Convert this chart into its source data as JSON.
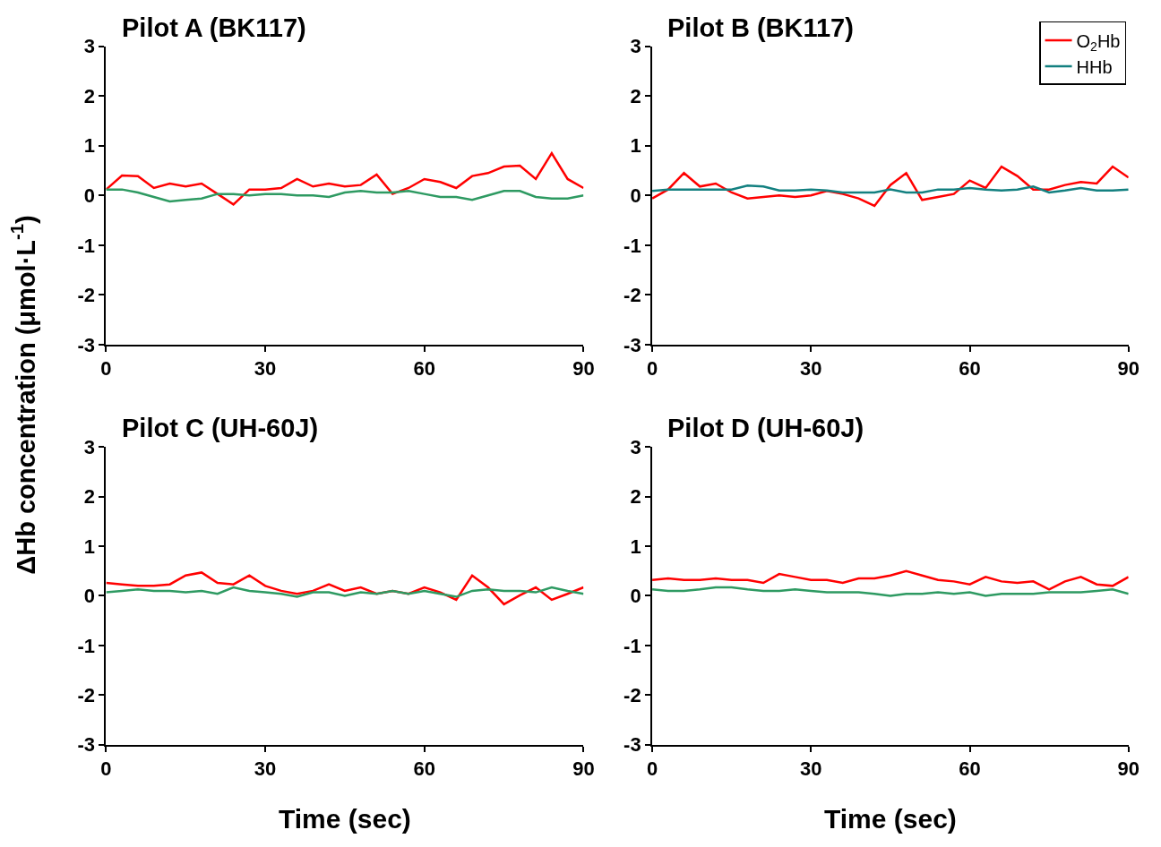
{
  "chart_data": [
    {
      "type": "line",
      "title": "Pilot A (BK117)",
      "ylabel": "ΔHb concentration (μmol·L$^{-1}$)",
      "x": [
        0,
        3,
        6,
        9,
        12,
        15,
        18,
        21,
        24,
        27,
        30,
        33,
        36,
        39,
        42,
        45,
        48,
        51,
        54,
        57,
        60,
        63,
        66,
        69,
        72,
        75,
        78,
        81,
        84,
        87,
        90
      ],
      "xlim": [
        0,
        90
      ],
      "xticks": [
        0,
        30,
        60,
        90
      ],
      "ylim": [
        -3,
        3
      ],
      "yticks": [
        -3,
        -2,
        -1,
        0,
        1,
        2,
        3
      ],
      "legend": false,
      "series": [
        {
          "color": "#ff0000",
          "values": [
            0.12,
            0.4,
            0.39,
            0.15,
            0.24,
            0.18,
            0.24,
            0.03,
            -0.18,
            0.12,
            0.12,
            0.15,
            0.33,
            0.18,
            0.24,
            0.18,
            0.21,
            0.42,
            0.03,
            0.15,
            0.33,
            0.27,
            0.15,
            0.39,
            0.45,
            0.58,
            0.6,
            0.33,
            0.85,
            0.33,
            0.15
          ]
        },
        {
          "color": "#2e9a62",
          "values": [
            0.12,
            0.12,
            0.06,
            -0.03,
            -0.12,
            -0.09,
            -0.06,
            0.03,
            0.03,
            0,
            0.03,
            0.03,
            0,
            0,
            -0.03,
            0.06,
            0.09,
            0.06,
            0.06,
            0.09,
            0.03,
            -0.03,
            -0.03,
            -0.09,
            0,
            0.09,
            0.09,
            -0.03,
            -0.06,
            -0.06,
            0
          ]
        }
      ]
    },
    {
      "type": "line",
      "title": "Pilot B (BK117)",
      "x": [
        0,
        3,
        6,
        9,
        12,
        15,
        18,
        21,
        24,
        27,
        30,
        33,
        36,
        39,
        42,
        45,
        48,
        51,
        54,
        57,
        60,
        63,
        66,
        69,
        72,
        75,
        78,
        81,
        84,
        87,
        90
      ],
      "xlim": [
        0,
        90
      ],
      "xticks": [
        0,
        30,
        60,
        90
      ],
      "ylim": [
        -3,
        3
      ],
      "yticks": [
        -3,
        -2,
        -1,
        0,
        1,
        2,
        3
      ],
      "legend": "top right",
      "series": [
        {
          "name": "O$_{2}$Hb",
          "color": "#ff0000",
          "values": [
            -0.06,
            0.12,
            0.45,
            0.18,
            0.24,
            0.06,
            -0.06,
            -0.03,
            0,
            -0.03,
            0,
            0.09,
            0.03,
            -0.06,
            -0.21,
            0.21,
            0.45,
            -0.09,
            -0.03,
            0.03,
            0.3,
            0.15,
            0.58,
            0.39,
            0.12,
            0.12,
            0.21,
            0.27,
            0.24,
            0.58,
            0.36
          ]
        },
        {
          "name": "HHb",
          "color": "#138080",
          "values": [
            0.09,
            0.12,
            0.12,
            0.12,
            0.12,
            0.12,
            0.2,
            0.18,
            0.1,
            0.1,
            0.12,
            0.1,
            0.06,
            0.06,
            0.06,
            0.12,
            0.06,
            0.06,
            0.12,
            0.12,
            0.15,
            0.12,
            0.1,
            0.12,
            0.18,
            0.06,
            0.1,
            0.15,
            0.1,
            0.1,
            0.12
          ]
        }
      ]
    },
    {
      "type": "line",
      "title": "Pilot C (UH-60J)",
      "xlabel": "Time (sec)",
      "x": [
        0,
        3,
        6,
        9,
        12,
        15,
        18,
        21,
        24,
        27,
        30,
        33,
        36,
        39,
        42,
        45,
        48,
        51,
        54,
        57,
        60,
        63,
        66,
        69,
        72,
        75,
        78,
        81,
        84,
        87,
        90
      ],
      "xlim": [
        0,
        90
      ],
      "xticks": [
        0,
        30,
        60,
        90
      ],
      "ylim": [
        -3,
        3
      ],
      "yticks": [
        -3,
        -2,
        -1,
        0,
        1,
        2,
        3
      ],
      "legend": false,
      "series": [
        {
          "color": "#ff0000",
          "values": [
            0.26,
            0.23,
            0.2,
            0.2,
            0.23,
            0.41,
            0.47,
            0.26,
            0.23,
            0.41,
            0.2,
            0.1,
            0.04,
            0.1,
            0.23,
            0.1,
            0.17,
            0.04,
            0.1,
            0.04,
            0.17,
            0.07,
            -0.08,
            0.41,
            0.17,
            -0.17,
            0.01,
            0.17,
            -0.08,
            0.04,
            0.17
          ]
        },
        {
          "color": "#2e9a62",
          "values": [
            0.07,
            0.1,
            0.13,
            0.1,
            0.1,
            0.07,
            0.1,
            0.04,
            0.17,
            0.1,
            0.07,
            0.04,
            -0.02,
            0.07,
            0.07,
            0,
            0.07,
            0.04,
            0.1,
            0.04,
            0.1,
            0.04,
            -0.02,
            0.1,
            0.13,
            0.1,
            0.1,
            0.07,
            0.17,
            0.1,
            0.04
          ]
        }
      ]
    },
    {
      "type": "line",
      "title": "Pilot D (UH-60J)",
      "xlabel": "Time (sec)",
      "x": [
        0,
        3,
        6,
        9,
        12,
        15,
        18,
        21,
        24,
        27,
        30,
        33,
        36,
        39,
        42,
        45,
        48,
        51,
        54,
        57,
        60,
        63,
        66,
        69,
        72,
        75,
        78,
        81,
        84,
        87,
        90
      ],
      "xlim": [
        0,
        90
      ],
      "xticks": [
        0,
        30,
        60,
        90
      ],
      "ylim": [
        -3,
        3
      ],
      "yticks": [
        -3,
        -2,
        -1,
        0,
        1,
        2,
        3
      ],
      "legend": false,
      "series": [
        {
          "color": "#ff0000",
          "values": [
            0.32,
            0.35,
            0.32,
            0.32,
            0.35,
            0.32,
            0.32,
            0.26,
            0.44,
            0.38,
            0.32,
            0.32,
            0.26,
            0.35,
            0.35,
            0.41,
            0.5,
            0.41,
            0.32,
            0.29,
            0.23,
            0.38,
            0.29,
            0.26,
            0.29,
            0.13,
            0.29,
            0.38,
            0.23,
            0.2,
            0.38
          ]
        },
        {
          "color": "#2e9a62",
          "values": [
            0.13,
            0.1,
            0.1,
            0.13,
            0.17,
            0.17,
            0.13,
            0.1,
            0.1,
            0.13,
            0.1,
            0.07,
            0.07,
            0.07,
            0.04,
            0,
            0.04,
            0.04,
            0.07,
            0.04,
            0.07,
            0,
            0.04,
            0.04,
            0.04,
            0.07,
            0.07,
            0.07,
            0.1,
            0.13,
            0.04
          ]
        }
      ]
    }
  ]
}
